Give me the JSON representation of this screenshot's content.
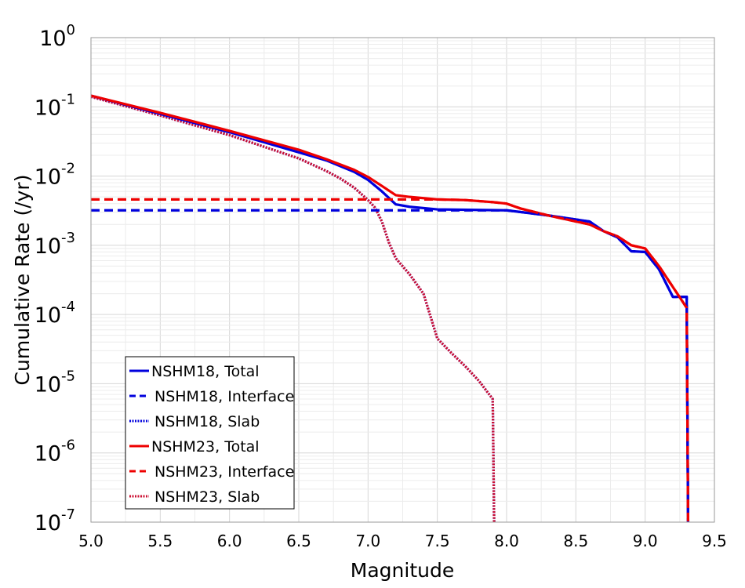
{
  "chart_data": {
    "type": "line",
    "xlabel": "Magnitude",
    "ylabel": "Cumulative Rate (/yr)",
    "xlim": [
      5.0,
      9.5
    ],
    "ylim": [
      1e-07,
      1
    ],
    "yscale": "log",
    "x_ticks": [
      "5.0",
      "5.5",
      "6.0",
      "6.5",
      "7.0",
      "7.5",
      "8.0",
      "8.5",
      "9.0",
      "9.5"
    ],
    "y_ticks": [
      {
        "base": "10",
        "exp": "0"
      },
      {
        "base": "10",
        "exp": "-1"
      },
      {
        "base": "10",
        "exp": "-2"
      },
      {
        "base": "10",
        "exp": "-3"
      },
      {
        "base": "10",
        "exp": "-4"
      },
      {
        "base": "10",
        "exp": "-5"
      },
      {
        "base": "10",
        "exp": "-6"
      },
      {
        "base": "10",
        "exp": "-7"
      }
    ],
    "grid": true,
    "legend_position": "lower-left",
    "series": [
      {
        "name": "NSHM18, Total",
        "color": "#0000dd",
        "style": "solid",
        "points": [
          [
            5.0,
            0.145
          ],
          [
            5.5,
            0.079
          ],
          [
            6.0,
            0.043
          ],
          [
            6.5,
            0.022
          ],
          [
            6.7,
            0.0168
          ],
          [
            6.9,
            0.0115
          ],
          [
            7.0,
            0.0088
          ],
          [
            7.1,
            0.006
          ],
          [
            7.2,
            0.0039
          ],
          [
            7.3,
            0.0036
          ],
          [
            7.5,
            0.0033
          ],
          [
            8.0,
            0.0032
          ],
          [
            8.3,
            0.0027
          ],
          [
            8.6,
            0.0022
          ],
          [
            8.7,
            0.0016
          ],
          [
            8.8,
            0.0013
          ],
          [
            8.9,
            0.00082
          ],
          [
            9.0,
            0.0008
          ],
          [
            9.1,
            0.00045
          ],
          [
            9.2,
            0.00018
          ],
          [
            9.3,
            0.00018
          ],
          [
            9.31,
            1e-07
          ]
        ]
      },
      {
        "name": "NSHM18, Interface",
        "color": "#0000dd",
        "style": "dashed",
        "points": [
          [
            5.0,
            0.0032
          ],
          [
            8.0,
            0.0032
          ],
          [
            8.3,
            0.0027
          ],
          [
            8.6,
            0.0022
          ],
          [
            8.7,
            0.0016
          ],
          [
            8.8,
            0.0013
          ],
          [
            8.9,
            0.00082
          ],
          [
            9.0,
            0.0008
          ],
          [
            9.1,
            0.00045
          ],
          [
            9.2,
            0.00018
          ],
          [
            9.3,
            0.00018
          ],
          [
            9.31,
            1e-07
          ]
        ]
      },
      {
        "name": "NSHM18, Slab",
        "color": "#0000dd",
        "style": "dotted",
        "points": [
          [
            5.0,
            0.14
          ],
          [
            5.5,
            0.075
          ],
          [
            6.0,
            0.039
          ],
          [
            6.5,
            0.018
          ],
          [
            6.7,
            0.0118
          ],
          [
            6.8,
            0.0092
          ],
          [
            6.9,
            0.0068
          ],
          [
            7.0,
            0.0045
          ],
          [
            7.05,
            0.0035
          ],
          [
            7.1,
            0.0022
          ],
          [
            7.15,
            0.0011
          ],
          [
            7.2,
            0.00065
          ],
          [
            7.3,
            0.00038
          ],
          [
            7.4,
            0.0002
          ],
          [
            7.5,
            4.5e-05
          ],
          [
            7.6,
            2.8e-05
          ],
          [
            7.7,
            1.8e-05
          ],
          [
            7.8,
            1.1e-05
          ],
          [
            7.9,
            6e-06
          ],
          [
            7.91,
            1e-07
          ]
        ]
      },
      {
        "name": "NSHM23, Total",
        "color": "#ee0000",
        "style": "solid",
        "points": [
          [
            5.0,
            0.145
          ],
          [
            5.5,
            0.082
          ],
          [
            6.0,
            0.045
          ],
          [
            6.5,
            0.024
          ],
          [
            6.7,
            0.0175
          ],
          [
            6.9,
            0.0123
          ],
          [
            7.0,
            0.0097
          ],
          [
            7.1,
            0.0072
          ],
          [
            7.2,
            0.0053
          ],
          [
            7.3,
            0.005
          ],
          [
            7.5,
            0.0046
          ],
          [
            7.7,
            0.0045
          ],
          [
            7.9,
            0.0042
          ],
          [
            8.0,
            0.004
          ],
          [
            8.1,
            0.0034
          ],
          [
            8.3,
            0.0027
          ],
          [
            8.6,
            0.002
          ],
          [
            8.7,
            0.0016
          ],
          [
            8.8,
            0.00135
          ],
          [
            8.9,
            0.001
          ],
          [
            9.0,
            0.0009
          ],
          [
            9.1,
            0.0005
          ],
          [
            9.2,
            0.00025
          ],
          [
            9.3,
            0.000125
          ],
          [
            9.31,
            1e-07
          ]
        ]
      },
      {
        "name": "NSHM23, Interface",
        "color": "#ee0000",
        "style": "dashed",
        "points": [
          [
            5.0,
            0.0046
          ],
          [
            7.5,
            0.0046
          ],
          [
            7.7,
            0.0045
          ],
          [
            7.9,
            0.0042
          ],
          [
            8.0,
            0.004
          ],
          [
            8.1,
            0.0034
          ],
          [
            8.3,
            0.0027
          ],
          [
            8.6,
            0.002
          ],
          [
            8.7,
            0.0016
          ],
          [
            8.8,
            0.00135
          ],
          [
            8.9,
            0.001
          ],
          [
            9.0,
            0.0009
          ],
          [
            9.1,
            0.0005
          ],
          [
            9.2,
            0.00025
          ],
          [
            9.3,
            0.000125
          ],
          [
            9.31,
            1e-07
          ]
        ]
      },
      {
        "name": "NSHM23, Slab",
        "color": "#cc1133",
        "style": "dotted",
        "points": [
          [
            5.0,
            0.14
          ],
          [
            5.5,
            0.075
          ],
          [
            6.0,
            0.039
          ],
          [
            6.5,
            0.018
          ],
          [
            6.7,
            0.0118
          ],
          [
            6.8,
            0.0092
          ],
          [
            6.9,
            0.0068
          ],
          [
            7.0,
            0.0045
          ],
          [
            7.05,
            0.0035
          ],
          [
            7.1,
            0.0022
          ],
          [
            7.15,
            0.0011
          ],
          [
            7.2,
            0.00065
          ],
          [
            7.3,
            0.00038
          ],
          [
            7.4,
            0.0002
          ],
          [
            7.5,
            4.5e-05
          ],
          [
            7.6,
            2.8e-05
          ],
          [
            7.7,
            1.8e-05
          ],
          [
            7.8,
            1.1e-05
          ],
          [
            7.9,
            6e-06
          ],
          [
            7.91,
            1e-07
          ]
        ]
      }
    ]
  }
}
